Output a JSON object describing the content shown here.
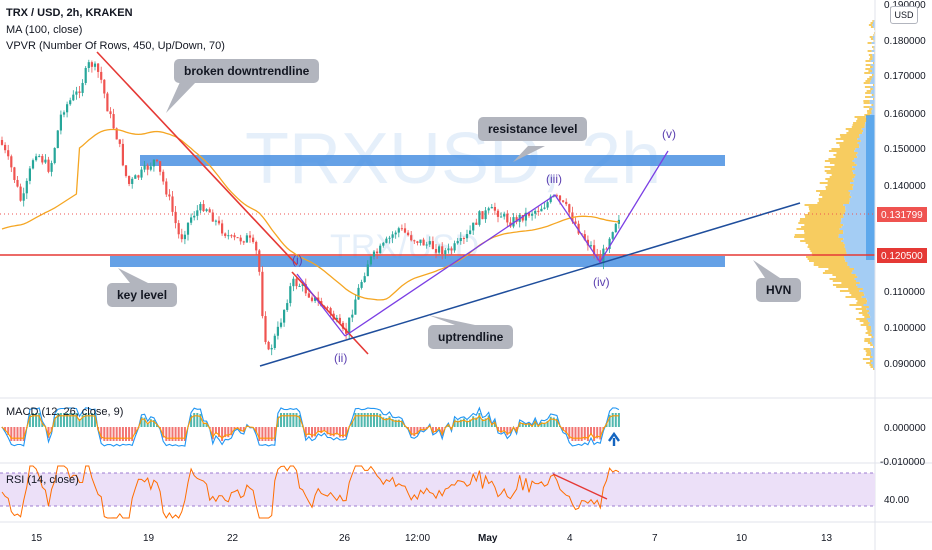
{
  "legend": {
    "symbol": "TRX / USD, 2h, KRAKEN",
    "ma": "MA (100, close)",
    "vpvr": "VPVR (Number Of Rows, 450, Up/Down, 70)"
  },
  "watermark": {
    "main": "TRXUSD, 2h",
    "sub": "TRX/USD"
  },
  "currency": "USD",
  "price_axis": {
    "ticks": [
      "0.190000",
      "0.180000",
      "0.170000",
      "0.160000",
      "0.150000",
      "0.140000",
      "0.110000",
      "0.100000",
      "0.090000"
    ],
    "current_price": "0.131799",
    "level_price": "0.120500"
  },
  "time_axis": {
    "ticks": [
      "15",
      "19",
      "22",
      "26",
      "12:00",
      "May",
      "4",
      "7",
      "10",
      "13"
    ]
  },
  "annotations": {
    "broken_downtrendline": "broken downtrendline",
    "resistance_level": "resistance level",
    "key_level": "key level",
    "uptrendline": "uptrendline",
    "hvn": "HVN",
    "waves": [
      "(i)",
      "(ii)",
      "(iii)",
      "(iv)",
      "(v)"
    ]
  },
  "macd": {
    "label": "MACD (12, 26, close, 9)",
    "ticks": [
      "0.000000",
      "-0.010000"
    ]
  },
  "rsi": {
    "label": "RSI (14, close)",
    "ticks": [
      "40.00"
    ]
  },
  "colors": {
    "candle_up": "#26a69a",
    "candle_down": "#ef5350",
    "ma_line": "#f5a623",
    "blue_zone": "#4a90e2",
    "level_red": "#e53935",
    "uptrend_blue": "#1f4e9c",
    "wave_purple": "#7b3fe4",
    "rsi_band": "#ece0f8",
    "vpvr_up": "#f6c344",
    "vpvr_down": "#9ac8f3"
  }
}
